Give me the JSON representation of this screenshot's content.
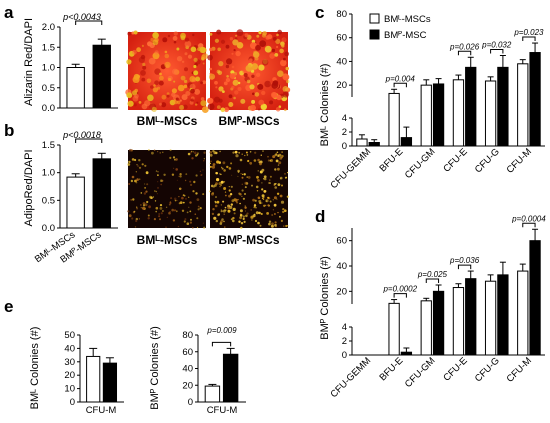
{
  "panels": {
    "a": {
      "label": "a",
      "ylabel": "Alizarin Red/DAPI",
      "sig": "p<0.0043",
      "ticks": [
        "0.0",
        "0.5",
        "1.0",
        "1.5",
        "2.0"
      ],
      "images": [
        "BMᴸ-MSCs",
        "BMᴾ-MSCs"
      ]
    },
    "b": {
      "label": "b",
      "ylabel": "AdipoRed/DAPI",
      "sig": "p<0.0018",
      "ticks": [
        "0.0",
        "0.5",
        "1.0",
        "1.5"
      ],
      "xcats": [
        "BMᴸ-MSCs",
        "BMᴾ-MSCs"
      ],
      "images": [
        "BMᴸ-MSCs",
        "BMᴾ-MSCs"
      ]
    },
    "c": {
      "label": "c",
      "ylabel": "BMᴸ Colonies (#)",
      "legend": [
        "BMᴸ-MSCs",
        "BMᴾ-MSC"
      ],
      "ticks_low": [
        "0",
        "2",
        "4"
      ],
      "ticks_high": [
        "20",
        "40",
        "60",
        "80"
      ],
      "cats": [
        "CFU-GEMM",
        "BFU-E",
        "CFU-GM",
        "CFU-E",
        "CFU-G",
        "CFU-M"
      ],
      "sigs": [
        "p=0.004",
        "p=0.026",
        "p=0.032",
        "p=0.023"
      ]
    },
    "d": {
      "label": "d",
      "ylabel": "BMᴾ Colonies (#)",
      "ticks_low": [
        "0",
        "2",
        "4"
      ],
      "ticks_high": [
        "20",
        "40",
        "60"
      ],
      "cats": [
        "CFU-GEMM",
        "BFU-E",
        "CFU-GM",
        "CFU-E",
        "CFU-G",
        "CFU-M"
      ],
      "sigs": [
        "p=0.0002",
        "p=0.025",
        "p=0.036",
        "p=0.0004"
      ]
    },
    "e": {
      "label": "e",
      "ylabel1": "BMᴸ Colonies (#)",
      "ylabel2": "BMᴾ Colonies (#)",
      "ticks1": [
        "0",
        "10",
        "20",
        "30",
        "40",
        "50"
      ],
      "ticks2": [
        "0",
        "20",
        "40",
        "60",
        "80"
      ],
      "xcat": "CFU-M",
      "sig": "p=0.009"
    }
  },
  "chart_data": [
    {
      "type": "bar",
      "panel": "a",
      "categories": [
        "BMᴸ-MSCs",
        "BMᴾ-MSCs"
      ],
      "values": [
        1.0,
        1.55
      ],
      "errors": [
        0.08,
        0.15
      ],
      "ylabel": "Alizarin Red/DAPI",
      "ylim": [
        0,
        2.0
      ]
    },
    {
      "type": "bar",
      "panel": "b",
      "categories": [
        "BMᴸ-MSCs",
        "BMᴾ-MSCs"
      ],
      "values": [
        0.92,
        1.25
      ],
      "errors": [
        0.06,
        0.1
      ],
      "ylabel": "AdipoRed/DAPI",
      "ylim": [
        0,
        1.5
      ]
    },
    {
      "type": "bar",
      "panel": "c",
      "categories": [
        "CFU-GEMM",
        "BFU-E",
        "CFU-GM",
        "CFU-E",
        "CFU-G",
        "CFU-M"
      ],
      "ylabel": "BMᴸ Colonies (#)",
      "series": [
        {
          "name": "BMᴸ-MSCs",
          "values": [
            1.0,
            13.0,
            20.0,
            24.5,
            23.5,
            38.0
          ],
          "errors": [
            0.6,
            3.5,
            4.5,
            4.0,
            3.5,
            3.5
          ]
        },
        {
          "name": "BMᴾ-MSC",
          "values": [
            0.5,
            1.2,
            21.0,
            35.0,
            35.0,
            47.5
          ],
          "errors": [
            0.4,
            1.5,
            4.5,
            8.5,
            10.0,
            8.0
          ]
        }
      ]
    },
    {
      "type": "bar",
      "panel": "d",
      "categories": [
        "CFU-GEMM",
        "BFU-E",
        "CFU-GM",
        "CFU-E",
        "CFU-G",
        "CFU-M"
      ],
      "ylabel": "BMᴾ Colonies (#)",
      "series": [
        {
          "name": "BMᴸ-MSCs",
          "values": [
            0,
            10.5,
            12.5,
            23.0,
            28.0,
            36.0
          ],
          "errors": [
            0,
            3.0,
            2.0,
            3.0,
            5.0,
            5.5
          ]
        },
        {
          "name": "BMᴾ-MSC",
          "values": [
            0,
            0.4,
            20.0,
            30.0,
            33.0,
            60.0
          ],
          "errors": [
            0,
            0.6,
            5.0,
            6.0,
            10.0,
            9.0
          ]
        }
      ]
    },
    {
      "type": "bar",
      "panel": "e1",
      "categories": [
        "CFU-M"
      ],
      "ylabel": "BMᴸ Colonies (#)",
      "ylim": [
        0,
        50
      ],
      "series": [
        {
          "values": [
            34
          ]
        },
        {
          "values": [
            29
          ]
        }
      ],
      "errors": [
        [
          6
        ],
        [
          4
        ]
      ]
    },
    {
      "type": "bar",
      "panel": "e2",
      "categories": [
        "CFU-M"
      ],
      "ylabel": "BMᴾ Colonies (#)",
      "ylim": [
        0,
        80
      ],
      "series": [
        {
          "values": [
            19
          ]
        },
        {
          "values": [
            57
          ]
        }
      ],
      "errors": [
        [
          2
        ],
        [
          7
        ]
      ]
    }
  ]
}
